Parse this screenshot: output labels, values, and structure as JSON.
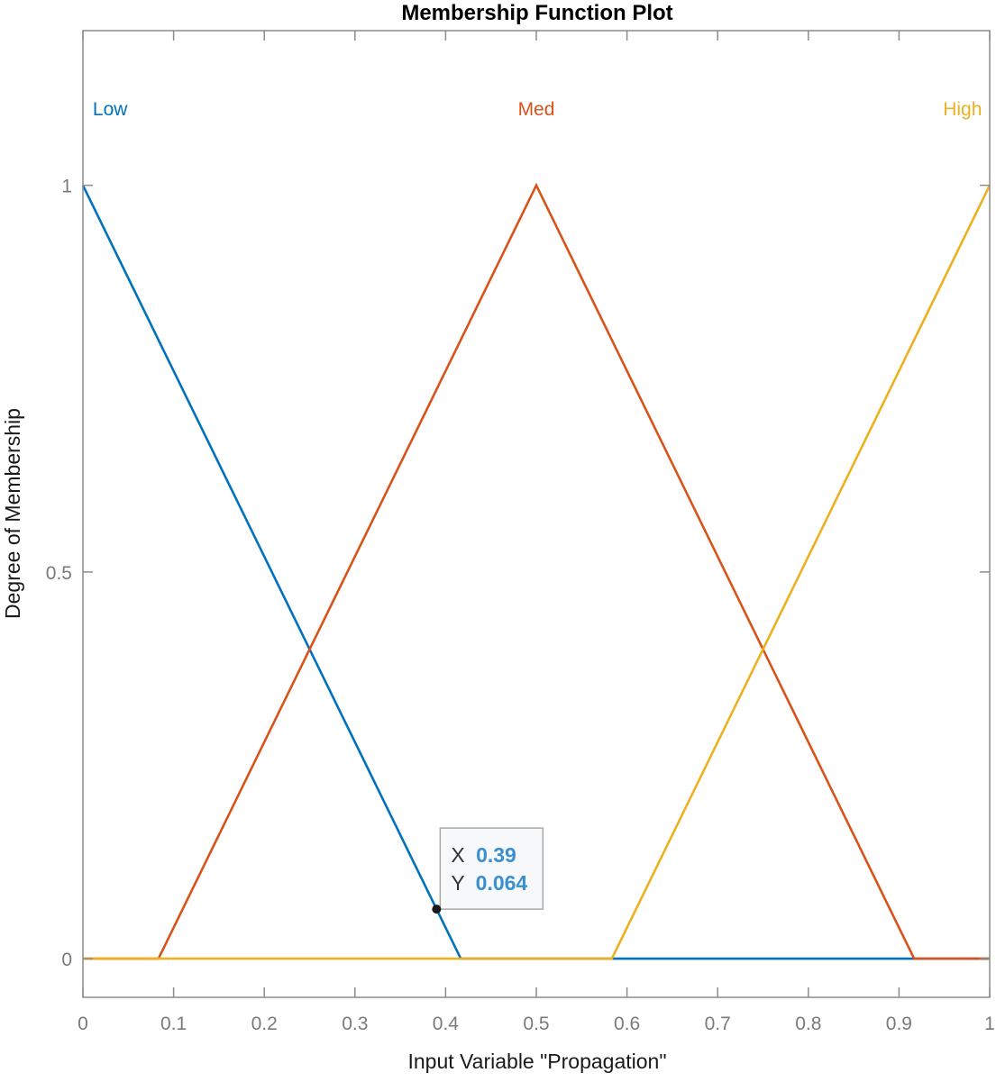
{
  "chart_data": {
    "type": "line",
    "title": "Membership Function Plot",
    "xlabel": "Input Variable \"Propagation\"",
    "ylabel": "Degree of Membership",
    "xlim": [
      0,
      1
    ],
    "ylim": [
      -0.05,
      1.2
    ],
    "grid": false,
    "x_ticks": [
      0,
      0.1,
      0.2,
      0.3,
      0.4,
      0.5,
      0.6,
      0.7,
      0.8,
      0.9,
      1
    ],
    "x_tick_labels": [
      "0",
      "0.1",
      "0.2",
      "0.3",
      "0.4",
      "0.5",
      "0.6",
      "0.7",
      "0.8",
      "0.9",
      "1"
    ],
    "y_ticks": [
      0,
      0.5,
      1
    ],
    "y_tick_labels": [
      "0",
      "0.5",
      "1"
    ],
    "series": [
      {
        "name": "Low",
        "color": "#0072BD",
        "x": [
          0,
          0.4167,
          1
        ],
        "y": [
          1,
          0,
          0
        ],
        "label_x": 0.03
      },
      {
        "name": "Med",
        "color": "#D95319",
        "x": [
          0,
          0.0833,
          0.5,
          0.9167,
          1
        ],
        "y": [
          0,
          0,
          1,
          0,
          0
        ],
        "label_x": 0.5
      },
      {
        "name": "High",
        "color": "#EDB120",
        "x": [
          0,
          0.5833,
          1
        ],
        "y": [
          0,
          0,
          1
        ],
        "label_x": 0.97
      }
    ],
    "series_label_y": 1.1,
    "datatip": {
      "x": 0.39,
      "y": 0.064,
      "x_prefix": "X",
      "y_prefix": "Y",
      "x_text": "0.39",
      "y_text": "0.064",
      "value_color": "#3A8FD0"
    }
  }
}
